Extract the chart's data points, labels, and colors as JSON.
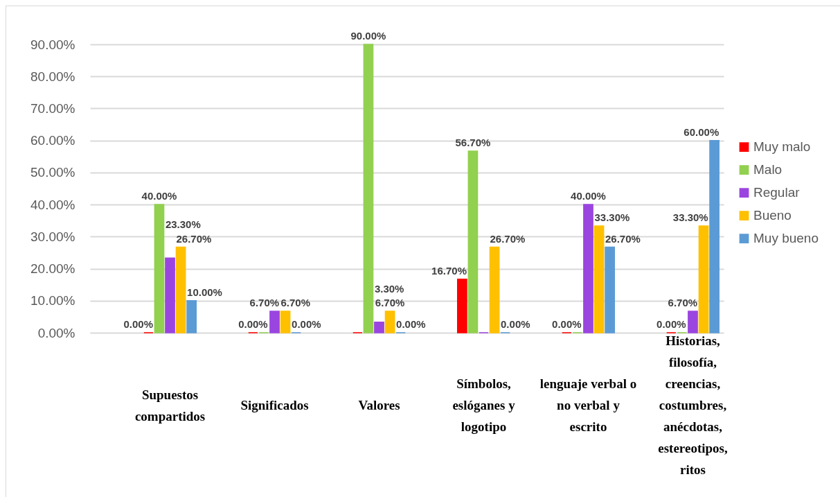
{
  "chart_data": {
    "type": "bar",
    "categories": [
      "Supuestos compartidos",
      "Significados",
      "Valores",
      "Símbolos, eslóganes y logotipo",
      "lenguaje verbal o no verbal y escrito",
      "Historias, filosofía, creencias, costumbres, anécdotas, estereotipos, ritos"
    ],
    "series": [
      {
        "name": "Muy malo",
        "color": "#ff0000",
        "values": [
          0,
          0,
          0,
          16.7,
          0,
          0
        ],
        "value_labels": [
          "0.00%",
          "0.00%",
          null,
          "16.70%",
          "0.00%",
          "0.00%"
        ]
      },
      {
        "name": "Malo",
        "color": "#92d050",
        "values": [
          40,
          0,
          90,
          56.7,
          0,
          0
        ],
        "value_labels": [
          "40.00%",
          null,
          "90.00%",
          "56.70%",
          null,
          null
        ]
      },
      {
        "name": "Regular",
        "color": "#9b45e0",
        "values": [
          23.3,
          6.7,
          3.3,
          0,
          40,
          6.7
        ],
        "value_labels": [
          "23.30%",
          "6.70%",
          "3.30%",
          null,
          "40.00%",
          "6.70%"
        ]
      },
      {
        "name": "Bueno",
        "color": "#ffc000",
        "values": [
          26.7,
          6.7,
          6.7,
          26.7,
          33.3,
          33.3
        ],
        "value_labels": [
          "26.70%",
          "6.70%",
          "6.70%",
          "26.70%",
          "33.30%",
          "33.30%"
        ]
      },
      {
        "name": "Muy bueno",
        "color": "#5b9bd5",
        "values": [
          10,
          0,
          0,
          0,
          26.7,
          60
        ],
        "value_labels": [
          "10.00%",
          "0.00%",
          "0.00%",
          "0.00%",
          "26.70%",
          "60.00%"
        ]
      }
    ],
    "ylim": [
      0,
      90
    ],
    "yticks": [
      {
        "value": 0,
        "label": "0.00%"
      },
      {
        "value": 10,
        "label": "10.00%"
      },
      {
        "value": 20,
        "label": "20.00%"
      },
      {
        "value": 30,
        "label": "30.00%"
      },
      {
        "value": 40,
        "label": "40.00%"
      },
      {
        "value": 50,
        "label": "50.00%"
      },
      {
        "value": 60,
        "label": "60.00%"
      },
      {
        "value": 70,
        "label": "70.00%"
      },
      {
        "value": 80,
        "label": "80.00%"
      },
      {
        "value": 90,
        "label": "90.00%"
      }
    ],
    "grid": "y",
    "legend": "right"
  }
}
